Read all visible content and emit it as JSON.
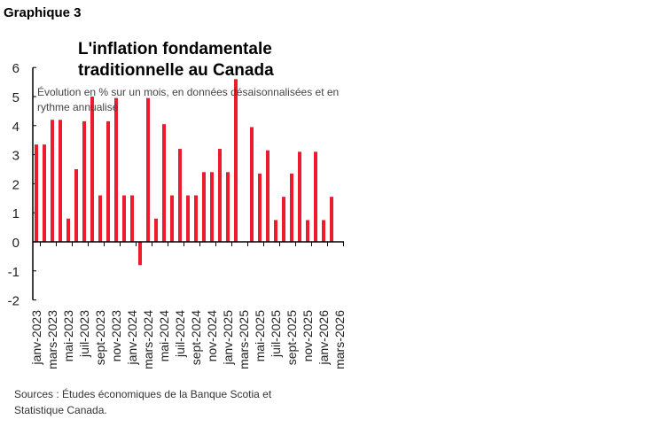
{
  "graph_label": "Graphique 3",
  "chart_data": {
    "type": "bar",
    "title": "L'inflation fondamentale traditionnelle au Canada",
    "subtitle": "Évolution en % sur un mois, en données désaisonnalisées et en rythme annualisé",
    "ylim": [
      -2,
      6
    ],
    "yticks": [
      -2,
      -1,
      0,
      1,
      2,
      3,
      4,
      5,
      6
    ],
    "categories": [
      "janv-2023",
      "févr-2023",
      "mars-2023",
      "avr-2023",
      "mai-2023",
      "juin-2023",
      "juil-2023",
      "août-2023",
      "sept-2023",
      "oct-2023",
      "nov-2023",
      "déc-2023",
      "janv-2024",
      "févr-2024",
      "mars-2024",
      "avr-2024",
      "mai-2024",
      "juin-2024",
      "juil-2024",
      "août-2024",
      "sept-2024",
      "oct-2024",
      "nov-2024",
      "déc-2024",
      "janv-2025",
      "févr-2025",
      "mars-2025",
      "avr-2025",
      "mai-2025",
      "juin-2025",
      "juil-2025",
      "août-2025",
      "sept-2025",
      "oct-2025",
      "nov-2025",
      "déc-2025",
      "janv-2026",
      "févr-2026"
    ],
    "values": [
      3.35,
      3.35,
      4.2,
      4.2,
      0.8,
      2.5,
      4.15,
      5.0,
      1.6,
      4.15,
      4.95,
      1.6,
      1.6,
      -0.8,
      4.95,
      0.8,
      4.05,
      1.6,
      3.2,
      1.6,
      1.6,
      2.4,
      2.4,
      3.2,
      2.4,
      5.6,
      0,
      3.95,
      2.35,
      3.15,
      0.75,
      1.55,
      2.35,
      3.1,
      0.75,
      3.1,
      0.75,
      1.55
    ],
    "xtick_labels": [
      "janv-2023",
      "mars-2023",
      "mai-2023",
      "juil-2023",
      "sept-2023",
      "nov-2023",
      "janv-2024",
      "mars-2024",
      "mai-2024",
      "juil-2024",
      "sept-2024",
      "nov-2024",
      "janv-2025",
      "mars-2025",
      "mai-2025",
      "juil-2025",
      "sept-2025",
      "nov-2025",
      "janv-2026",
      "mars-2026"
    ],
    "bar_color": "#ec1c2e",
    "grid": false
  },
  "source": "Sources : Études économiques de la Banque Scotia et Statistique Canada."
}
